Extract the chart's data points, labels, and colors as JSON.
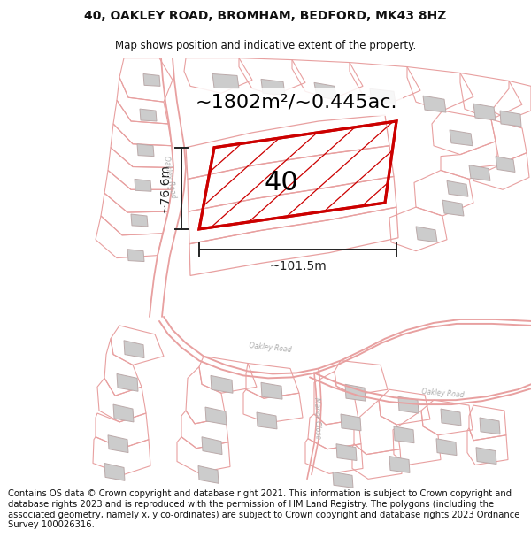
{
  "title": "40, OAKLEY ROAD, BROMHAM, BEDFORD, MK43 8HZ",
  "subtitle": "Map shows position and indicative extent of the property.",
  "footer": "Contains OS data © Crown copyright and database right 2021. This information is subject to Crown copyright and database rights 2023 and is reproduced with the permission of HM Land Registry. The polygons (including the associated geometry, namely x, y co-ordinates) are subject to Crown copyright and database rights 2023 Ordnance Survey 100026316.",
  "area_label": "~1802m²/~0.445ac.",
  "width_label": "~101.5m",
  "height_label": "~76.6m",
  "property_number": "40",
  "road_color": "#e8a0a0",
  "building_color": "#cccccc",
  "building_edge": "#bbaaaa",
  "highlight_color": "#cc0000",
  "dim_color": "#222222",
  "title_fontsize": 10,
  "subtitle_fontsize": 8.5,
  "footer_fontsize": 7.2,
  "area_fontsize": 16,
  "number_fontsize": 22,
  "dim_fontsize": 10
}
